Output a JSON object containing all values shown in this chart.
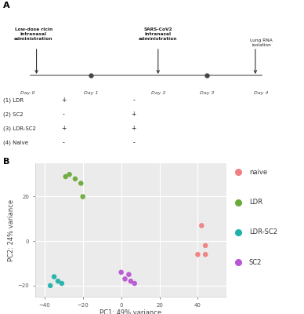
{
  "panel_b": {
    "naive": {
      "x": [
        42,
        44,
        40,
        44
      ],
      "y": [
        7,
        -2,
        -6,
        -6
      ]
    },
    "LDR": {
      "x": [
        -20,
        -24,
        -27,
        -29,
        -21
      ],
      "y": [
        20,
        28,
        30,
        29,
        26
      ]
    },
    "LDR_SC2": {
      "x": [
        -35,
        -33,
        -37,
        -31
      ],
      "y": [
        -16,
        -18,
        -20,
        -19
      ]
    },
    "SC2": {
      "x": [
        0,
        2,
        5,
        7,
        4
      ],
      "y": [
        -14,
        -17,
        -18,
        -19,
        -15
      ]
    }
  },
  "colors": {
    "naive": "#F08080",
    "LDR": "#6aaa3a",
    "LDR_SC2": "#20B2AA",
    "SC2": "#BA55D3"
  },
  "xlabel": "PC1: 49% variance",
  "ylabel": "PC2: 24% variance",
  "xlim": [
    -45,
    55
  ],
  "ylim": [
    -25,
    35
  ],
  "xticks": [
    -40,
    -20,
    0,
    20,
    40
  ],
  "yticks": [
    -20,
    0,
    20
  ],
  "legend_labels": [
    "naive",
    "LDR",
    "LDR-SC2",
    "SC2"
  ],
  "legend_keys": [
    "naive",
    "LDR",
    "LDR_SC2",
    "SC2"
  ],
  "bg_color": "#EBEBEB",
  "panel_a": {
    "days": [
      "Day 0",
      "Day 1",
      "Day 2",
      "Day 3",
      "Day 4"
    ],
    "day_xf": [
      0.12,
      0.3,
      0.52,
      0.68,
      0.84
    ],
    "ldr_label": "Low-dose ricin\nintranasal\nadministration",
    "sc2_label": "SARS-CoV2\nintranasal\nadministration",
    "lung_label": "Lung RNA\nisolation",
    "table_rows": [
      "(1) LDR",
      "(2) SC2",
      "(3) LDR-SC2",
      "(4) Naive"
    ],
    "col1": [
      "+",
      "-",
      "+",
      "-"
    ],
    "col2": [
      "-",
      "+",
      "+",
      "-"
    ]
  },
  "panel_a_label": "A",
  "panel_b_label": "B"
}
